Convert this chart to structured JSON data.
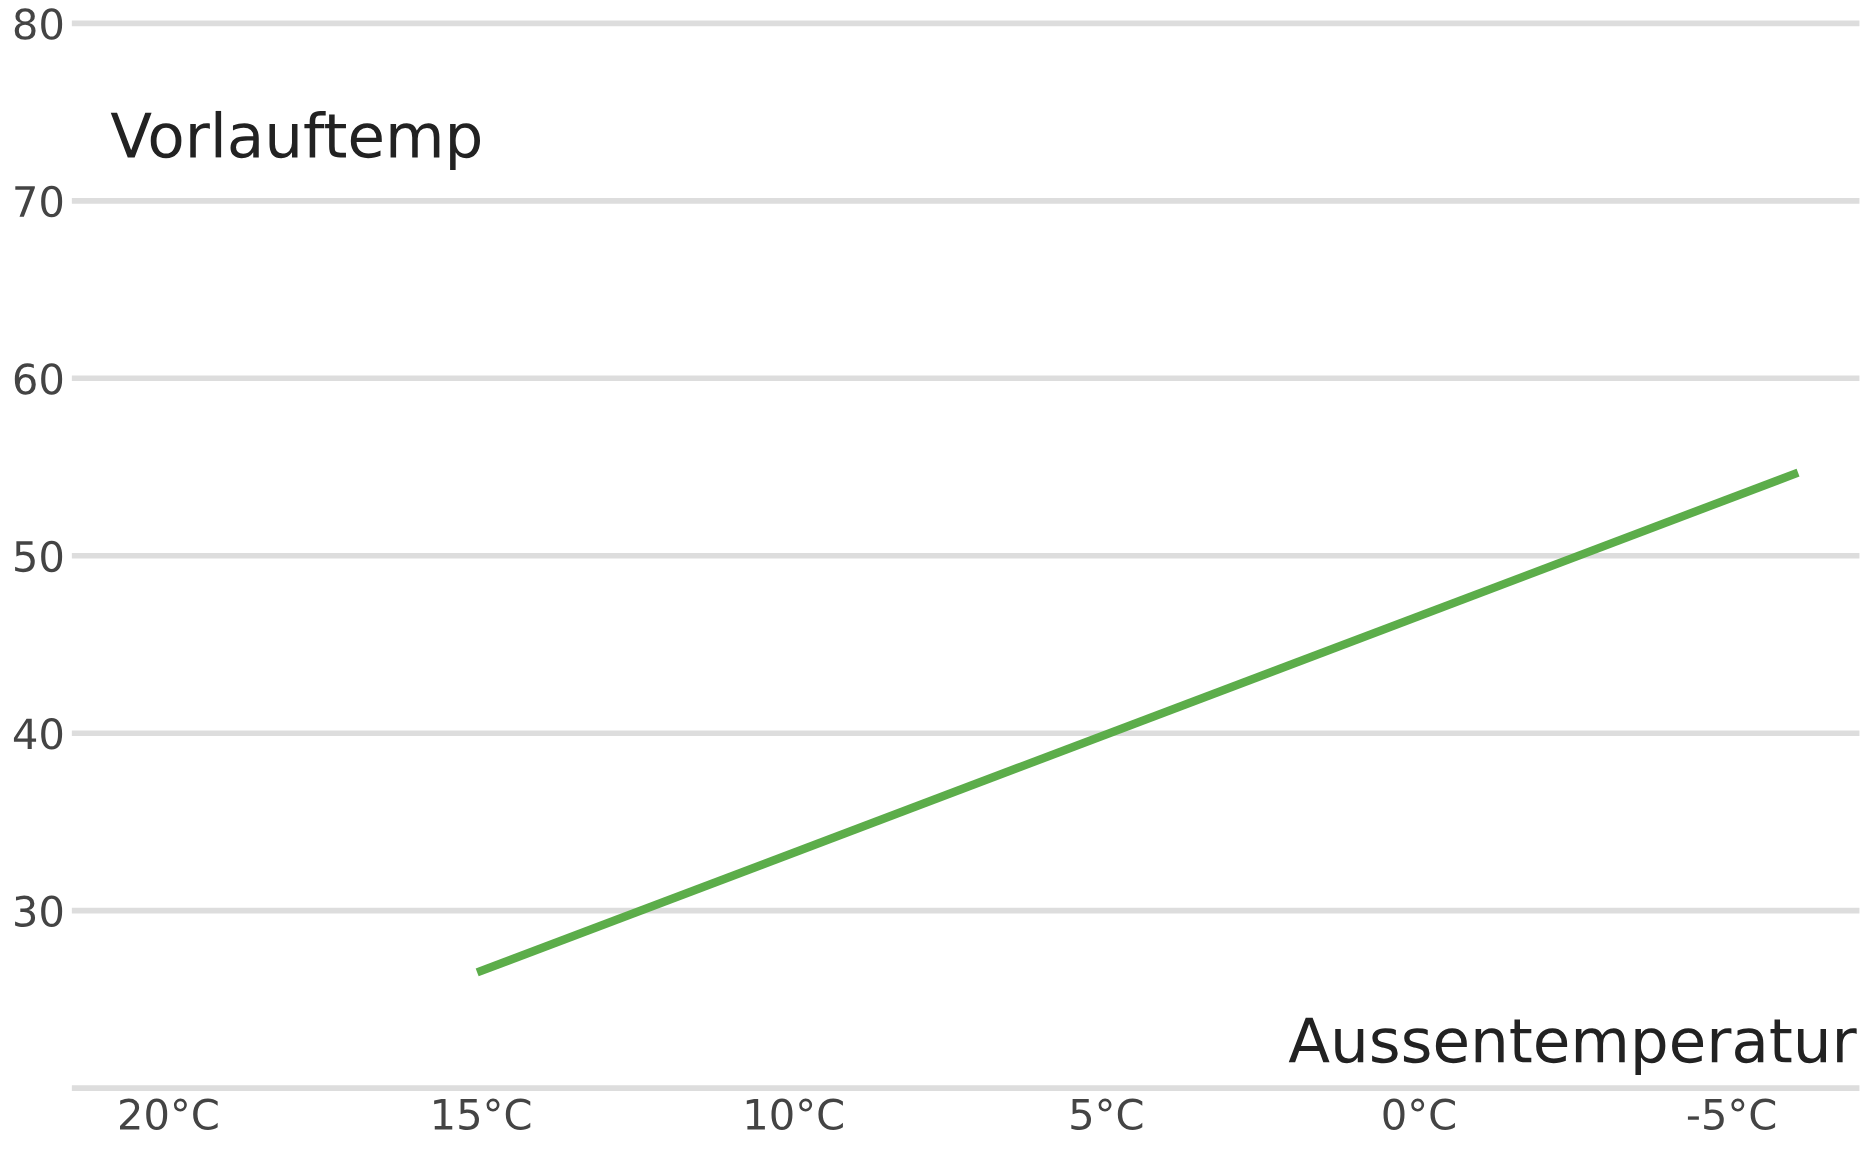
{
  "chart_data": {
    "type": "line",
    "ylabel": "Vorlauftemp",
    "xlabel": "Aussentemperatur",
    "series": [
      {
        "color": "#5cad4a",
        "x": [
          15,
          -6
        ],
        "values": [
          26.6,
          54.6
        ]
      }
    ],
    "xlim": [
      21.5,
      -7
    ],
    "xticks": [
      {
        "value": 20,
        "label": "20°C"
      },
      {
        "value": 15,
        "label": "15°C"
      },
      {
        "value": 10,
        "label": "10°C"
      },
      {
        "value": 5,
        "label": "5°C"
      },
      {
        "value": 0,
        "label": "0°C"
      },
      {
        "value": -5,
        "label": "-5°C"
      }
    ],
    "ylim": [
      20,
      80
    ],
    "yticks": [
      {
        "value": 20,
        "label": null
      },
      30,
      40,
      50,
      60,
      70,
      80
    ],
    "grid": "y",
    "marker": "none",
    "line_style": "solid",
    "legend": false
  }
}
